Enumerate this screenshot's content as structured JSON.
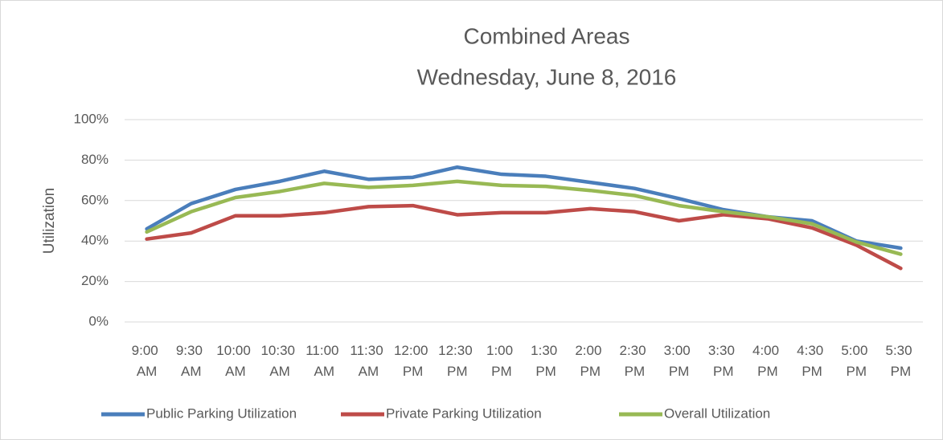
{
  "chart_data": {
    "type": "line",
    "title": "Combined Areas",
    "subtitle": "Wednesday, June 8, 2016",
    "y_label": "Utilization",
    "categories": [
      "9:00 AM",
      "9:30 AM",
      "10:00 AM",
      "10:30 AM",
      "11:00 AM",
      "11:30 AM",
      "12:00 PM",
      "12:30 PM",
      "1:00 PM",
      "1:30 PM",
      "2:00 PM",
      "2:30 PM",
      "3:00 PM",
      "3:30 PM",
      "4:00 PM",
      "4:30 PM",
      "5:00 PM",
      "5:30 PM"
    ],
    "series": [
      {
        "name": "Public Parking Utilization",
        "color": "#4a7ebb",
        "values": [
          46,
          58.5,
          65.5,
          69.5,
          74.5,
          70.5,
          71.5,
          76.5,
          73,
          72,
          69,
          66,
          61,
          55.5,
          52,
          50,
          40,
          36.5
        ]
      },
      {
        "name": "Private Parking Utilization",
        "color": "#be4b48",
        "values": [
          41,
          44,
          52.5,
          52.5,
          54,
          57,
          57.5,
          53,
          54,
          54,
          56,
          54.5,
          50,
          53,
          51,
          46.5,
          38,
          26.5
        ]
      },
      {
        "name": "Overall Utilization",
        "color": "#98b954",
        "values": [
          44.5,
          54.5,
          61.5,
          64.5,
          68.5,
          66.5,
          67.5,
          69.5,
          67.5,
          67,
          65,
          62.5,
          57.5,
          54.5,
          52,
          48.5,
          39.5,
          33.5
        ]
      }
    ],
    "ylim": [
      0,
      100
    ],
    "yticks": [
      {
        "value": 0,
        "label": "0%"
      },
      {
        "value": 20,
        "label": "20%"
      },
      {
        "value": 40,
        "label": "40%"
      },
      {
        "value": 60,
        "label": "60%"
      },
      {
        "value": 80,
        "label": "80%"
      },
      {
        "value": 100,
        "label": "100%"
      }
    ],
    "grid": true,
    "legend": "bottom"
  }
}
